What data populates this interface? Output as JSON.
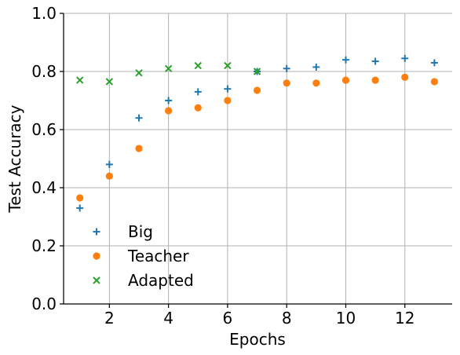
{
  "chart_data": {
    "type": "scatter",
    "title": "",
    "xlabel": "Epochs",
    "ylabel": "Test Accuracy",
    "xlim": [
      0.45,
      13.6
    ],
    "ylim": [
      0.0,
      1.0
    ],
    "xticks": [
      2,
      4,
      6,
      8,
      10,
      12
    ],
    "xtick_labels": [
      "2",
      "4",
      "6",
      "8",
      "10",
      "12"
    ],
    "yticks": [
      0.0,
      0.2,
      0.4,
      0.6,
      0.8,
      1.0
    ],
    "ytick_labels": [
      "0.0",
      "0.2",
      "0.4",
      "0.6",
      "0.8",
      "1.0"
    ],
    "grid": true,
    "legend_position": "lower-left",
    "series": [
      {
        "name": "Big",
        "marker": "plus",
        "color": "#1f77b4",
        "x": [
          1,
          2,
          3,
          4,
          5,
          6,
          7,
          8,
          9,
          10,
          11,
          12,
          13
        ],
        "values": [
          0.33,
          0.48,
          0.64,
          0.7,
          0.73,
          0.74,
          0.8,
          0.81,
          0.815,
          0.84,
          0.835,
          0.845,
          0.83
        ]
      },
      {
        "name": "Teacher",
        "marker": "circle",
        "color": "#ff7f0e",
        "x": [
          1,
          2,
          3,
          4,
          5,
          6,
          7,
          8,
          9,
          10,
          11,
          12,
          13
        ],
        "values": [
          0.365,
          0.44,
          0.535,
          0.665,
          0.675,
          0.7,
          0.735,
          0.76,
          0.76,
          0.77,
          0.77,
          0.78,
          0.765
        ]
      },
      {
        "name": "Adapted",
        "marker": "x",
        "color": "#2ca02c",
        "x": [
          1,
          2,
          3,
          4,
          5,
          6,
          7
        ],
        "values": [
          0.77,
          0.765,
          0.795,
          0.81,
          0.82,
          0.82,
          0.8
        ]
      }
    ]
  }
}
